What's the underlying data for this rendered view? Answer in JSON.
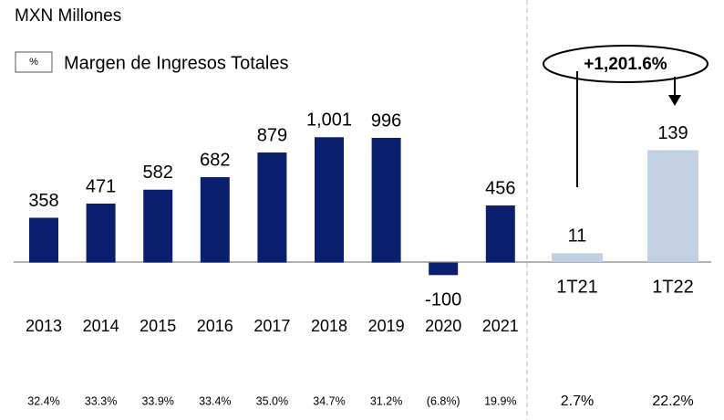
{
  "chart_data": [
    {
      "type": "bar",
      "title": "MXN Millones",
      "legend_symbol": "%",
      "legend_label": "Margen de Ingresos Totales",
      "categories": [
        "2013",
        "2014",
        "2015",
        "2016",
        "2017",
        "2018",
        "2019",
        "2020",
        "2021"
      ],
      "values": [
        358,
        471,
        582,
        682,
        879,
        1001,
        996,
        -100,
        456
      ],
      "value_labels": [
        "358",
        "471",
        "582",
        "682",
        "879",
        "1,001",
        "996",
        "-100",
        "456"
      ],
      "margins": [
        "32.4%",
        "33.3%",
        "33.9%",
        "33.4%",
        "35.0%",
        "34.7%",
        "31.2%",
        "(6.8%)",
        "19.9%"
      ],
      "color": "#0b1f6f",
      "ylim": [
        -200,
        1200
      ]
    },
    {
      "type": "bar",
      "categories": [
        "1T21",
        "1T22"
      ],
      "values": [
        11,
        139
      ],
      "margins": [
        "2.7%",
        "22.2%"
      ],
      "annotation": "+1,201.6%",
      "color": "#c3cfe2",
      "ylim": [
        -25,
        185
      ]
    }
  ]
}
